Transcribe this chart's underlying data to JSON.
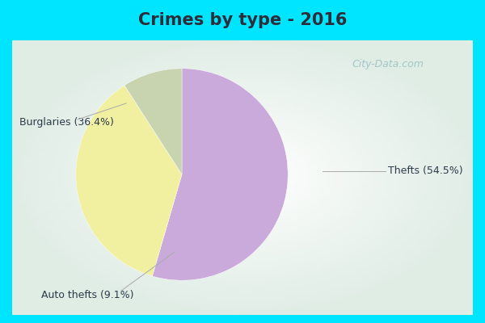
{
  "title": "Crimes by type - 2016",
  "slices": [
    54.5,
    36.4,
    9.1
  ],
  "labels": [
    "Thefts (54.5%)",
    "Burglaries (36.4%)",
    "Auto thefts (9.1%)"
  ],
  "colors": [
    "#c9aada",
    "#f0f0a0",
    "#c8d4b0"
  ],
  "startangle": 90,
  "background_top": "#00e5ff",
  "background_main": "#d0ece8",
  "title_fontsize": 15,
  "label_fontsize": 9,
  "watermark": "City-Data.com",
  "title_color": "#2d2d3a",
  "label_color": "#2d3a4a",
  "line_color": "#aaaaaa"
}
